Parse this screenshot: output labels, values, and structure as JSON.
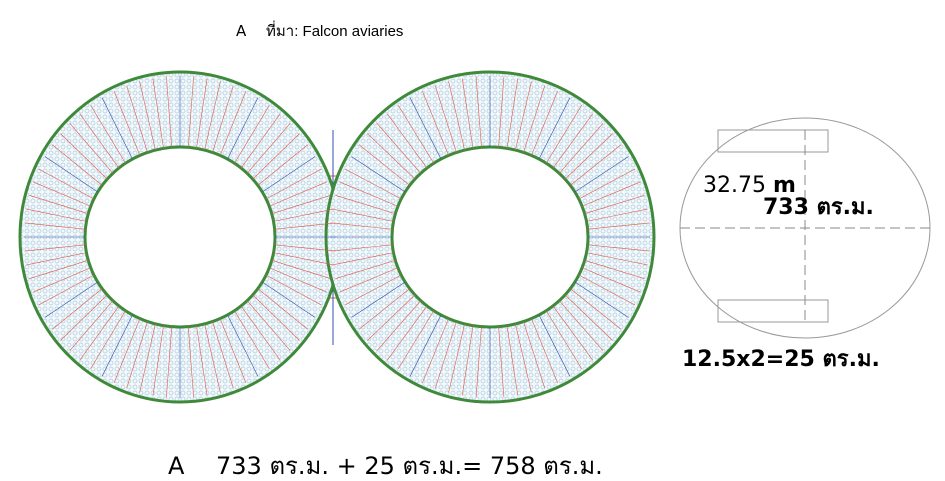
{
  "header": {
    "label": "A",
    "source": "ที่มา: Falcon aviaries"
  },
  "diagram": {
    "diameter": "32.75",
    "diameter_unit": "m",
    "area": "733 ตร.ม.",
    "extra_area": "12.5x2=25 ตร.ม."
  },
  "footer": {
    "label": "A",
    "equation": "733 ตร.ม. + 25 ตร.ม.= 758 ตร.ม."
  }
}
